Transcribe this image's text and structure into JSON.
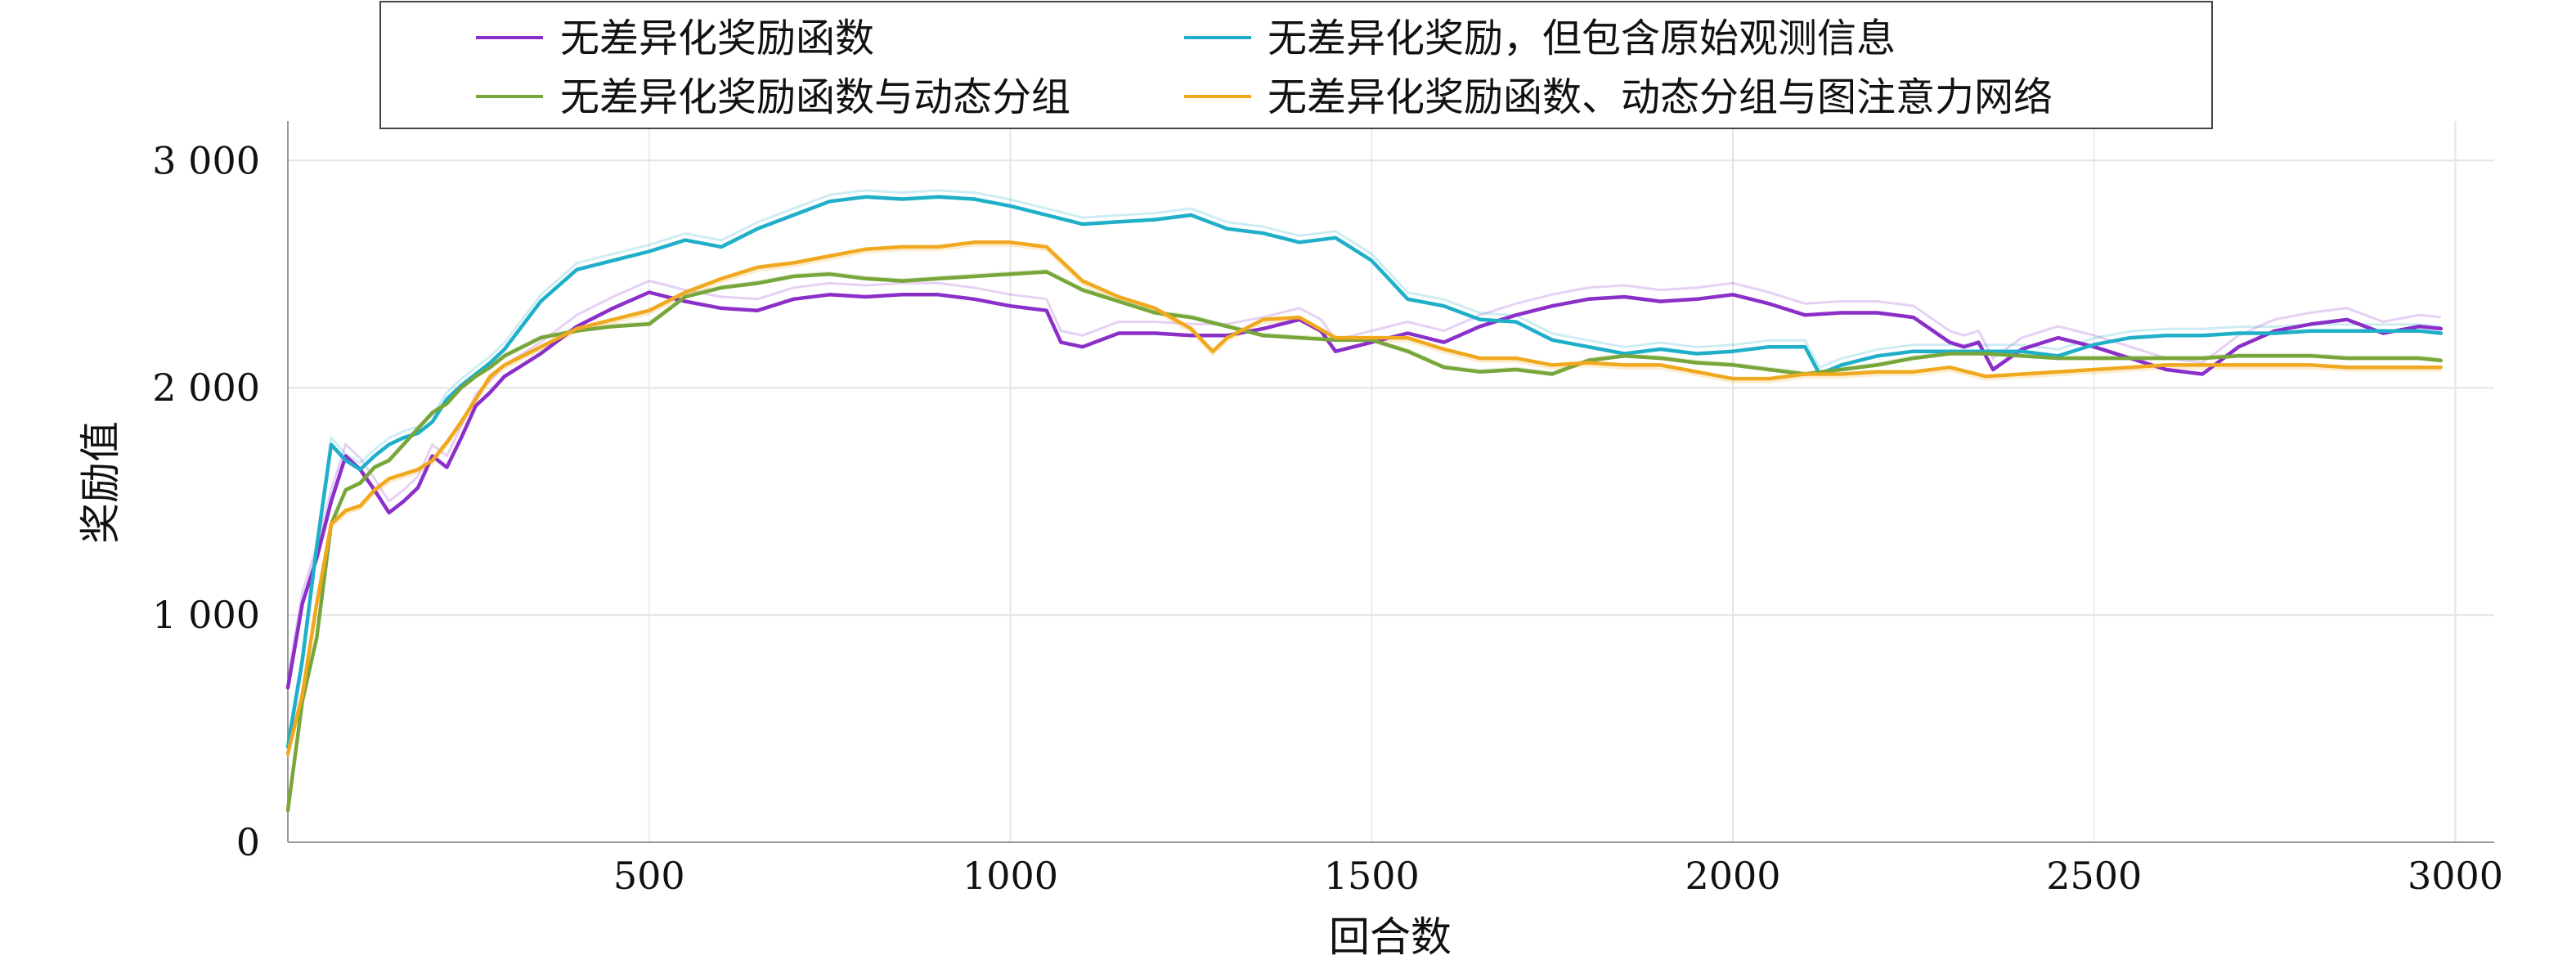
{
  "chart_data": {
    "type": "line",
    "xlabel": "回合数",
    "ylabel": "奖励值",
    "xlim": [
      0,
      3050
    ],
    "ylim": [
      0,
      3150
    ],
    "xticks": [
      500,
      1000,
      1500,
      2000,
      2500,
      3000
    ],
    "xtick_labels": [
      "500",
      "1000",
      "1500",
      "2000",
      "2500",
      "3000"
    ],
    "yticks": [
      0,
      1000,
      2000,
      3000
    ],
    "ytick_labels": [
      "0",
      "1 000",
      "2 000",
      "3 000"
    ],
    "grid": true,
    "legend_position": "top-center",
    "series": [
      {
        "name": "无差异化奖励函数",
        "color": "#8B2FC9",
        "x": [
          0,
          20,
          40,
          60,
          80,
          100,
          120,
          140,
          160,
          180,
          200,
          220,
          240,
          260,
          280,
          300,
          350,
          400,
          450,
          500,
          550,
          600,
          650,
          700,
          750,
          800,
          850,
          900,
          950,
          1000,
          1050,
          1070,
          1100,
          1150,
          1200,
          1250,
          1300,
          1350,
          1400,
          1430,
          1450,
          1500,
          1550,
          1600,
          1650,
          1700,
          1750,
          1800,
          1850,
          1900,
          1950,
          2000,
          2050,
          2100,
          2150,
          2200,
          2250,
          2300,
          2320,
          2340,
          2360,
          2400,
          2450,
          2500,
          2550,
          2600,
          2650,
          2700,
          2750,
          2800,
          2850,
          2900,
          2950,
          2980
        ],
        "y": [
          680,
          1050,
          1250,
          1500,
          1700,
          1640,
          1550,
          1450,
          1500,
          1560,
          1700,
          1650,
          1780,
          1920,
          1980,
          2050,
          2150,
          2270,
          2350,
          2420,
          2380,
          2350,
          2340,
          2390,
          2410,
          2400,
          2410,
          2410,
          2390,
          2360,
          2340,
          2200,
          2180,
          2240,
          2240,
          2230,
          2230,
          2260,
          2300,
          2250,
          2160,
          2200,
          2240,
          2200,
          2270,
          2320,
          2360,
          2390,
          2400,
          2380,
          2390,
          2410,
          2370,
          2320,
          2330,
          2330,
          2310,
          2200,
          2180,
          2200,
          2080,
          2170,
          2220,
          2180,
          2130,
          2080,
          2060,
          2180,
          2250,
          2280,
          2300,
          2240,
          2270,
          2260
        ]
      },
      {
        "name": "无差异化奖励，但包含原始观测信息",
        "color": "#1FAFC9",
        "x": [
          0,
          20,
          40,
          60,
          80,
          100,
          120,
          140,
          160,
          180,
          200,
          220,
          240,
          260,
          280,
          300,
          350,
          400,
          450,
          500,
          550,
          600,
          650,
          700,
          750,
          800,
          850,
          900,
          950,
          1000,
          1050,
          1100,
          1150,
          1200,
          1250,
          1300,
          1350,
          1400,
          1450,
          1500,
          1550,
          1600,
          1650,
          1700,
          1750,
          1800,
          1850,
          1900,
          1950,
          2000,
          2050,
          2100,
          2120,
          2150,
          2200,
          2250,
          2300,
          2350,
          2400,
          2450,
          2500,
          2550,
          2600,
          2650,
          2700,
          2750,
          2800,
          2850,
          2900,
          2950,
          2980
        ],
        "y": [
          420,
          800,
          1300,
          1750,
          1680,
          1640,
          1700,
          1750,
          1780,
          1800,
          1850,
          1950,
          2010,
          2060,
          2110,
          2170,
          2380,
          2520,
          2560,
          2600,
          2650,
          2620,
          2700,
          2760,
          2820,
          2840,
          2830,
          2840,
          2830,
          2800,
          2760,
          2720,
          2730,
          2740,
          2760,
          2700,
          2680,
          2640,
          2660,
          2560,
          2390,
          2360,
          2300,
          2290,
          2210,
          2180,
          2150,
          2170,
          2150,
          2160,
          2180,
          2180,
          2060,
          2100,
          2140,
          2160,
          2160,
          2160,
          2160,
          2140,
          2190,
          2220,
          2230,
          2230,
          2240,
          2240,
          2250,
          2250,
          2250,
          2250,
          2240
        ]
      },
      {
        "name": "无差异化奖励函数与动态分组",
        "color": "#77A63A",
        "x": [
          0,
          20,
          40,
          60,
          80,
          100,
          120,
          140,
          160,
          180,
          200,
          220,
          240,
          260,
          280,
          300,
          350,
          400,
          450,
          500,
          550,
          600,
          650,
          700,
          750,
          800,
          850,
          900,
          950,
          1000,
          1050,
          1100,
          1150,
          1200,
          1250,
          1300,
          1350,
          1400,
          1450,
          1500,
          1550,
          1600,
          1650,
          1700,
          1750,
          1800,
          1850,
          1900,
          1950,
          2000,
          2050,
          2100,
          2150,
          2200,
          2250,
          2300,
          2350,
          2400,
          2450,
          2500,
          2550,
          2600,
          2650,
          2700,
          2750,
          2800,
          2850,
          2900,
          2950,
          2980
        ],
        "y": [
          140,
          620,
          900,
          1400,
          1550,
          1580,
          1650,
          1680,
          1750,
          1820,
          1890,
          1930,
          2000,
          2050,
          2090,
          2140,
          2220,
          2250,
          2270,
          2280,
          2400,
          2440,
          2460,
          2490,
          2500,
          2480,
          2470,
          2480,
          2490,
          2500,
          2510,
          2430,
          2380,
          2330,
          2310,
          2270,
          2230,
          2220,
          2210,
          2210,
          2160,
          2090,
          2070,
          2080,
          2060,
          2120,
          2140,
          2130,
          2110,
          2100,
          2080,
          2060,
          2080,
          2100,
          2130,
          2150,
          2150,
          2140,
          2130,
          2130,
          2130,
          2130,
          2130,
          2140,
          2140,
          2140,
          2130,
          2130,
          2130,
          2120
        ]
      },
      {
        "name": "无差异化奖励函数、动态分组与图注意力网络",
        "color": "#F0A81E",
        "x": [
          0,
          20,
          40,
          60,
          80,
          100,
          120,
          140,
          160,
          180,
          200,
          220,
          240,
          260,
          280,
          300,
          350,
          400,
          450,
          500,
          550,
          600,
          650,
          700,
          750,
          800,
          850,
          900,
          950,
          1000,
          1050,
          1100,
          1150,
          1200,
          1250,
          1280,
          1300,
          1350,
          1400,
          1450,
          1500,
          1550,
          1600,
          1650,
          1700,
          1750,
          1800,
          1850,
          1900,
          1950,
          2000,
          2050,
          2100,
          2150,
          2200,
          2250,
          2300,
          2350,
          2400,
          2450,
          2500,
          2550,
          2600,
          2650,
          2700,
          2750,
          2800,
          2850,
          2900,
          2950,
          2980
        ],
        "y": [
          390,
          650,
          1050,
          1400,
          1460,
          1480,
          1550,
          1600,
          1620,
          1640,
          1680,
          1760,
          1850,
          1950,
          2050,
          2100,
          2180,
          2260,
          2300,
          2340,
          2420,
          2480,
          2530,
          2550,
          2580,
          2610,
          2620,
          2620,
          2640,
          2640,
          2620,
          2470,
          2400,
          2350,
          2260,
          2160,
          2220,
          2300,
          2310,
          2220,
          2220,
          2220,
          2170,
          2130,
          2130,
          2100,
          2110,
          2100,
          2100,
          2070,
          2040,
          2040,
          2060,
          2060,
          2070,
          2070,
          2090,
          2050,
          2060,
          2070,
          2080,
          2090,
          2100,
          2100,
          2100,
          2100,
          2100,
          2090,
          2090,
          2090,
          2090
        ]
      }
    ]
  }
}
